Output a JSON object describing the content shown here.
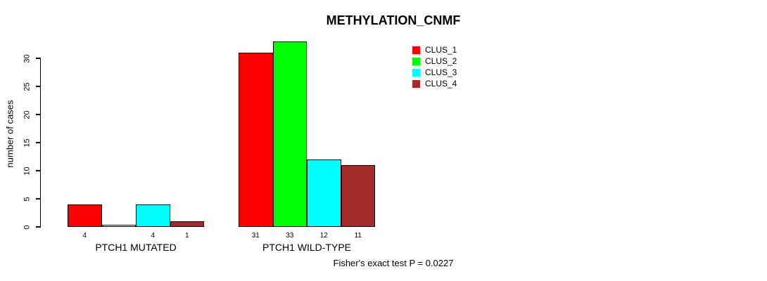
{
  "title": "METHYLATION_CNMF",
  "ylabel": "number of cases",
  "footer": "Fisher's exact test P = 0.0227",
  "colors": {
    "background": "#ffffff",
    "axis": "#000000",
    "text": "#000000"
  },
  "legend": {
    "entries": [
      {
        "label": "CLUS_1",
        "color": "#FF0000"
      },
      {
        "label": "CLUS_2",
        "color": "#00FF00"
      },
      {
        "label": "CLUS_3",
        "color": "#00FFFF"
      },
      {
        "label": "CLUS_4",
        "color": "#A52A2A"
      }
    ]
  },
  "groups": [
    {
      "label": "PTCH1 MUTATED",
      "bar_labels": [
        "4",
        "",
        "4",
        "1"
      ]
    },
    {
      "label": "PTCH1 WILD-TYPE",
      "bar_labels": [
        "31",
        "33",
        "12",
        "11"
      ]
    }
  ],
  "chart_data": {
    "type": "bar",
    "title": "METHYLATION_CNMF",
    "xlabel": "",
    "ylabel": "number of cases",
    "categories": [
      "PTCH1 MUTATED",
      "PTCH1 WILD-TYPE"
    ],
    "series": [
      {
        "name": "CLUS_1",
        "color": "#FF0000",
        "values": [
          4,
          31
        ]
      },
      {
        "name": "CLUS_2",
        "color": "#00FF00",
        "values": [
          0,
          33
        ]
      },
      {
        "name": "CLUS_3",
        "color": "#00FFFF",
        "values": [
          4,
          12
        ]
      },
      {
        "name": "CLUS_4",
        "color": "#A52A2A",
        "values": [
          1,
          11
        ]
      }
    ],
    "bar_value_labels_shown": true,
    "zero_value_label_hidden": true,
    "y_ticks": [
      0,
      5,
      10,
      15,
      20,
      25,
      30
    ],
    "ylim": [
      0,
      33
    ],
    "grid": false,
    "legend_position": "top-right",
    "annotation": "Fisher's exact test P = 0.0227"
  }
}
